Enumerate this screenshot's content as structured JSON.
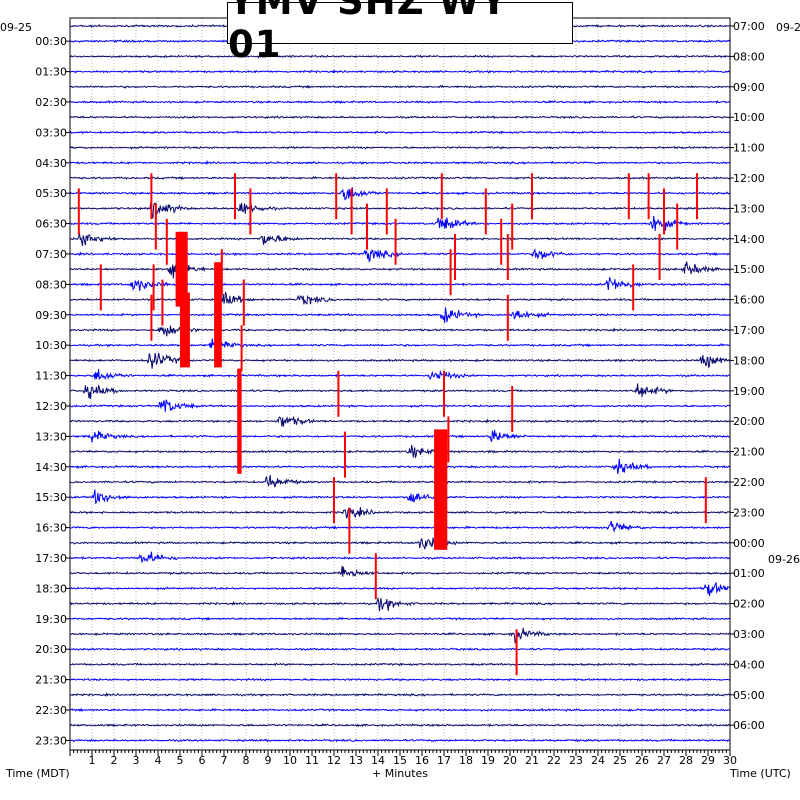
{
  "chart_data": {
    "type": "line",
    "title": "YMV SHZ WY 01",
    "xlabel": "+ Minutes",
    "left_axis_label": "Time (MDT)",
    "right_axis_label": "Time (UTC)",
    "left_date_label": "09-25",
    "right_date_label": "09-26",
    "right_top_date_label": "09-2",
    "xlim": [
      0,
      30
    ],
    "x_ticks": [
      "1",
      "2",
      "3",
      "4",
      "5",
      "6",
      "7",
      "8",
      "9",
      "10",
      "11",
      "12",
      "13",
      "14",
      "15",
      "16",
      "17",
      "18",
      "19",
      "20",
      "21",
      "22",
      "23",
      "24",
      "25",
      "26",
      "27",
      "28",
      "29",
      "30"
    ],
    "left_tick_labels": [
      "00:30",
      "01:30",
      "02:30",
      "03:30",
      "04:30",
      "05:30",
      "06:30",
      "07:30",
      "08:30",
      "09:30",
      "10:30",
      "11:30",
      "12:30",
      "13:30",
      "14:30",
      "15:30",
      "16:30",
      "17:30",
      "18:30",
      "19:30",
      "20:30",
      "21:30",
      "22:30",
      "23:30"
    ],
    "right_tick_labels": [
      "07:00",
      "08:00",
      "09:00",
      "10:00",
      "11:00",
      "12:00",
      "13:00",
      "14:00",
      "15:00",
      "16:00",
      "17:00",
      "18:00",
      "19:00",
      "20:00",
      "21:00",
      "22:00",
      "23:00",
      "00:00",
      "01:00",
      "02:00",
      "03:00",
      "04:00",
      "05:00",
      "06:00"
    ],
    "trace_colors": [
      "#0a0a6e",
      "#0000ff"
    ],
    "clip_color": "#ff0000",
    "trace_count": 48,
    "trace_minutes": 30,
    "activity_bursts": [
      {
        "trace": 11,
        "minute": 12.5,
        "amplitude": 0.9
      },
      {
        "trace": 12,
        "minute": 3.8,
        "amplitude": 1.0
      },
      {
        "trace": 12,
        "minute": 7.8,
        "amplitude": 0.8
      },
      {
        "trace": 13,
        "minute": 16.8,
        "amplitude": 0.9
      },
      {
        "trace": 13,
        "minute": 26.5,
        "amplitude": 1.0
      },
      {
        "trace": 14,
        "minute": 0.5,
        "amplitude": 0.9
      },
      {
        "trace": 14,
        "minute": 8.8,
        "amplitude": 0.7
      },
      {
        "trace": 15,
        "minute": 13.5,
        "amplitude": 0.8
      },
      {
        "trace": 15,
        "minute": 21.2,
        "amplitude": 0.7
      },
      {
        "trace": 16,
        "minute": 4.6,
        "amplitude": 1.0
      },
      {
        "trace": 16,
        "minute": 28.0,
        "amplitude": 0.8
      },
      {
        "trace": 17,
        "minute": 2.9,
        "amplitude": 0.8
      },
      {
        "trace": 17,
        "minute": 24.5,
        "amplitude": 0.9
      },
      {
        "trace": 18,
        "minute": 6.8,
        "amplitude": 0.9
      },
      {
        "trace": 18,
        "minute": 10.5,
        "amplitude": 0.6
      },
      {
        "trace": 19,
        "minute": 17.0,
        "amplitude": 0.8
      },
      {
        "trace": 19,
        "minute": 20.2,
        "amplitude": 0.7
      },
      {
        "trace": 20,
        "minute": 4.2,
        "amplitude": 0.9
      },
      {
        "trace": 21,
        "minute": 6.5,
        "amplitude": 0.6
      },
      {
        "trace": 22,
        "minute": 3.7,
        "amplitude": 1.0
      },
      {
        "trace": 22,
        "minute": 28.8,
        "amplitude": 0.8
      },
      {
        "trace": 23,
        "minute": 1.2,
        "amplitude": 0.7
      },
      {
        "trace": 23,
        "minute": 16.5,
        "amplitude": 0.7
      },
      {
        "trace": 24,
        "minute": 0.8,
        "amplitude": 0.8
      },
      {
        "trace": 24,
        "minute": 25.8,
        "amplitude": 0.8
      },
      {
        "trace": 25,
        "minute": 4.2,
        "amplitude": 0.9
      },
      {
        "trace": 26,
        "minute": 9.6,
        "amplitude": 0.8
      },
      {
        "trace": 27,
        "minute": 1.0,
        "amplitude": 0.6
      },
      {
        "trace": 27,
        "minute": 19.2,
        "amplitude": 0.7
      },
      {
        "trace": 28,
        "minute": 15.5,
        "amplitude": 0.6
      },
      {
        "trace": 29,
        "minute": 24.8,
        "amplitude": 0.8
      },
      {
        "trace": 30,
        "minute": 9.0,
        "amplitude": 0.8
      },
      {
        "trace": 31,
        "minute": 1.2,
        "amplitude": 0.8
      },
      {
        "trace": 31,
        "minute": 15.5,
        "amplitude": 0.8
      },
      {
        "trace": 32,
        "minute": 12.6,
        "amplitude": 0.7
      },
      {
        "trace": 33,
        "minute": 24.6,
        "amplitude": 0.6
      },
      {
        "trace": 34,
        "minute": 16.0,
        "amplitude": 0.8
      },
      {
        "trace": 35,
        "minute": 3.3,
        "amplitude": 0.8
      },
      {
        "trace": 36,
        "minute": 12.4,
        "amplitude": 0.7
      },
      {
        "trace": 37,
        "minute": 29.0,
        "amplitude": 0.8
      },
      {
        "trace": 38,
        "minute": 14.1,
        "amplitude": 0.7
      },
      {
        "trace": 40,
        "minute": 20.2,
        "amplitude": 0.7
      }
    ],
    "clipped_spikes": [
      {
        "trace": 11,
        "minute": 3.7
      },
      {
        "trace": 11,
        "minute": 7.5
      },
      {
        "trace": 11,
        "minute": 12.1
      },
      {
        "trace": 11,
        "minute": 16.9
      },
      {
        "trace": 11,
        "minute": 21.0
      },
      {
        "trace": 11,
        "minute": 25.4
      },
      {
        "trace": 11,
        "minute": 26.3
      },
      {
        "trace": 11,
        "minute": 28.5
      },
      {
        "trace": 12,
        "minute": 0.4
      },
      {
        "trace": 12,
        "minute": 8.2
      },
      {
        "trace": 12,
        "minute": 12.8
      },
      {
        "trace": 12,
        "minute": 14.4
      },
      {
        "trace": 12,
        "minute": 18.9
      },
      {
        "trace": 12,
        "minute": 27.0
      },
      {
        "trace": 13,
        "minute": 3.9
      },
      {
        "trace": 13,
        "minute": 13.5
      },
      {
        "trace": 13,
        "minute": 20.1
      },
      {
        "trace": 13,
        "minute": 27.6
      },
      {
        "trace": 14,
        "minute": 4.4
      },
      {
        "trace": 14,
        "minute": 14.8
      },
      {
        "trace": 14,
        "minute": 19.6
      },
      {
        "trace": 15,
        "minute": 17.5
      },
      {
        "trace": 15,
        "minute": 19.9
      },
      {
        "trace": 15,
        "minute": 26.8
      },
      {
        "trace": 16,
        "minute": 6.9
      },
      {
        "trace": 16,
        "minute": 17.3
      },
      {
        "trace": 17,
        "minute": 1.4
      },
      {
        "trace": 17,
        "minute": 3.8
      },
      {
        "trace": 17,
        "minute": 25.6
      },
      {
        "trace": 18,
        "minute": 4.2
      },
      {
        "trace": 18,
        "minute": 7.9
      },
      {
        "trace": 19,
        "minute": 3.7
      },
      {
        "trace": 19,
        "minute": 19.9
      },
      {
        "trace": 21,
        "minute": 7.8
      },
      {
        "trace": 24,
        "minute": 12.2
      },
      {
        "trace": 24,
        "minute": 17.0
      },
      {
        "trace": 25,
        "minute": 20.1
      },
      {
        "trace": 27,
        "minute": 17.2
      },
      {
        "trace": 28,
        "minute": 12.5
      },
      {
        "trace": 31,
        "minute": 12.0
      },
      {
        "trace": 31,
        "minute": 28.9
      },
      {
        "trace": 33,
        "minute": 12.7
      },
      {
        "trace": 36,
        "minute": 13.9
      },
      {
        "trace": 41,
        "minute": 20.3
      }
    ],
    "clipped_blocks": [
      {
        "trace_start": 14,
        "trace_end": 18,
        "minute": 4.8,
        "width_minutes": 0.55
      },
      {
        "trace_start": 18,
        "trace_end": 22,
        "minute": 5.0,
        "width_minutes": 0.45
      },
      {
        "trace_start": 16,
        "trace_end": 22,
        "minute": 6.55,
        "width_minutes": 0.35
      },
      {
        "trace_start": 23,
        "trace_end": 29,
        "minute": 7.6,
        "width_minutes": 0.2
      },
      {
        "trace_start": 27,
        "trace_end": 34,
        "minute": 16.55,
        "width_minutes": 0.6
      }
    ]
  }
}
